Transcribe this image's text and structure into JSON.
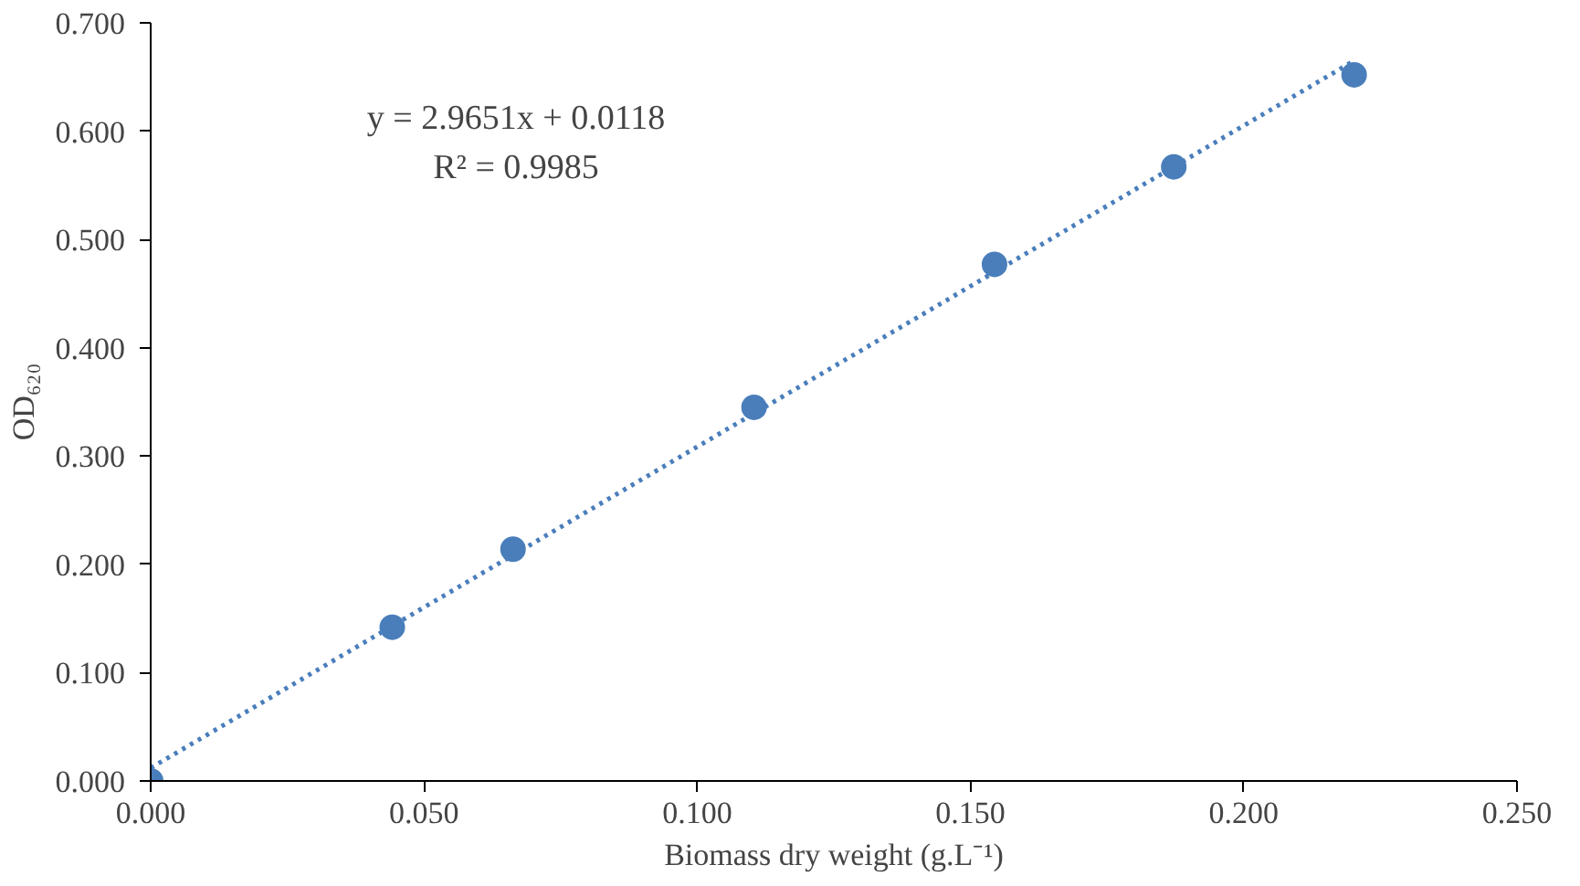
{
  "chart_data": {
    "type": "scatter",
    "xlabel": "Biomass dry weight (g.L⁻¹)",
    "ylabel": "OD₆₂₀",
    "x": [
      0,
      0.0442,
      0.0663,
      0.1104,
      0.1544,
      0.1872,
      0.2202
    ],
    "series": [
      {
        "color": "#4a7ebb",
        "values": [
          0,
          0.142,
          0.214,
          0.345,
          0.477,
          0.567,
          0.652
        ],
        "marker": "circle"
      },
      {
        "type": "line",
        "color": "#4a7ebb",
        "x": [
          0,
          0.2202
        ],
        "values": [
          0.012,
          0.665
        ],
        "line_style": "dotted"
      }
    ],
    "annotations": [
      "y = 2.9651x + 0.0118",
      "R² = 0.9985"
    ],
    "xlim": [
      0,
      0.25
    ],
    "ylim": [
      0,
      0.7
    ],
    "xticks": [
      {
        "value": 0,
        "label": "0.000"
      },
      {
        "value": 0.05,
        "label": "0.050"
      },
      {
        "value": 0.1,
        "label": "0.100"
      },
      {
        "value": 0.15,
        "label": "0.150"
      },
      {
        "value": 0.2,
        "label": "0.200"
      },
      {
        "value": 0.25,
        "label": "0.250"
      }
    ],
    "yticks": [
      {
        "value": 0,
        "label": "0.000"
      },
      {
        "value": 0.1,
        "label": "0.100"
      },
      {
        "value": 0.2,
        "label": "0.200"
      },
      {
        "value": 0.3,
        "label": "0.300"
      },
      {
        "value": 0.4,
        "label": "0.400"
      },
      {
        "value": 0.5,
        "label": "0.500"
      },
      {
        "value": 0.6,
        "label": "0.600"
      },
      {
        "value": 0.7,
        "label": "0.700"
      }
    ],
    "grid": false
  }
}
